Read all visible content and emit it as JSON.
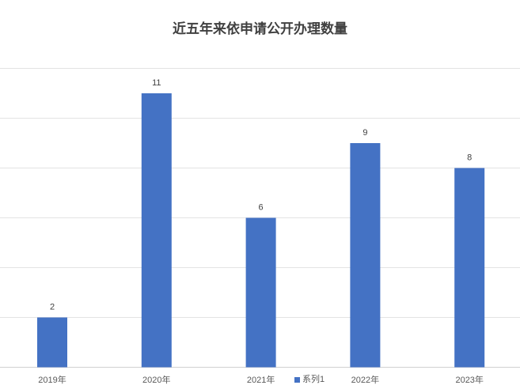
{
  "chart_data": {
    "type": "bar",
    "title": "近五年来依申请公开办理数量",
    "categories": [
      "2019年",
      "2020年",
      "2021年",
      "2022年",
      "2023年"
    ],
    "series": [
      {
        "name": "系列1",
        "values": [
          2,
          11,
          6,
          9,
          8
        ]
      }
    ],
    "ylim": [
      0,
      12
    ],
    "ytick_step": 2,
    "grid": true,
    "legend": "bottom",
    "bar_color": "#4472C4",
    "data_labels": true
  }
}
